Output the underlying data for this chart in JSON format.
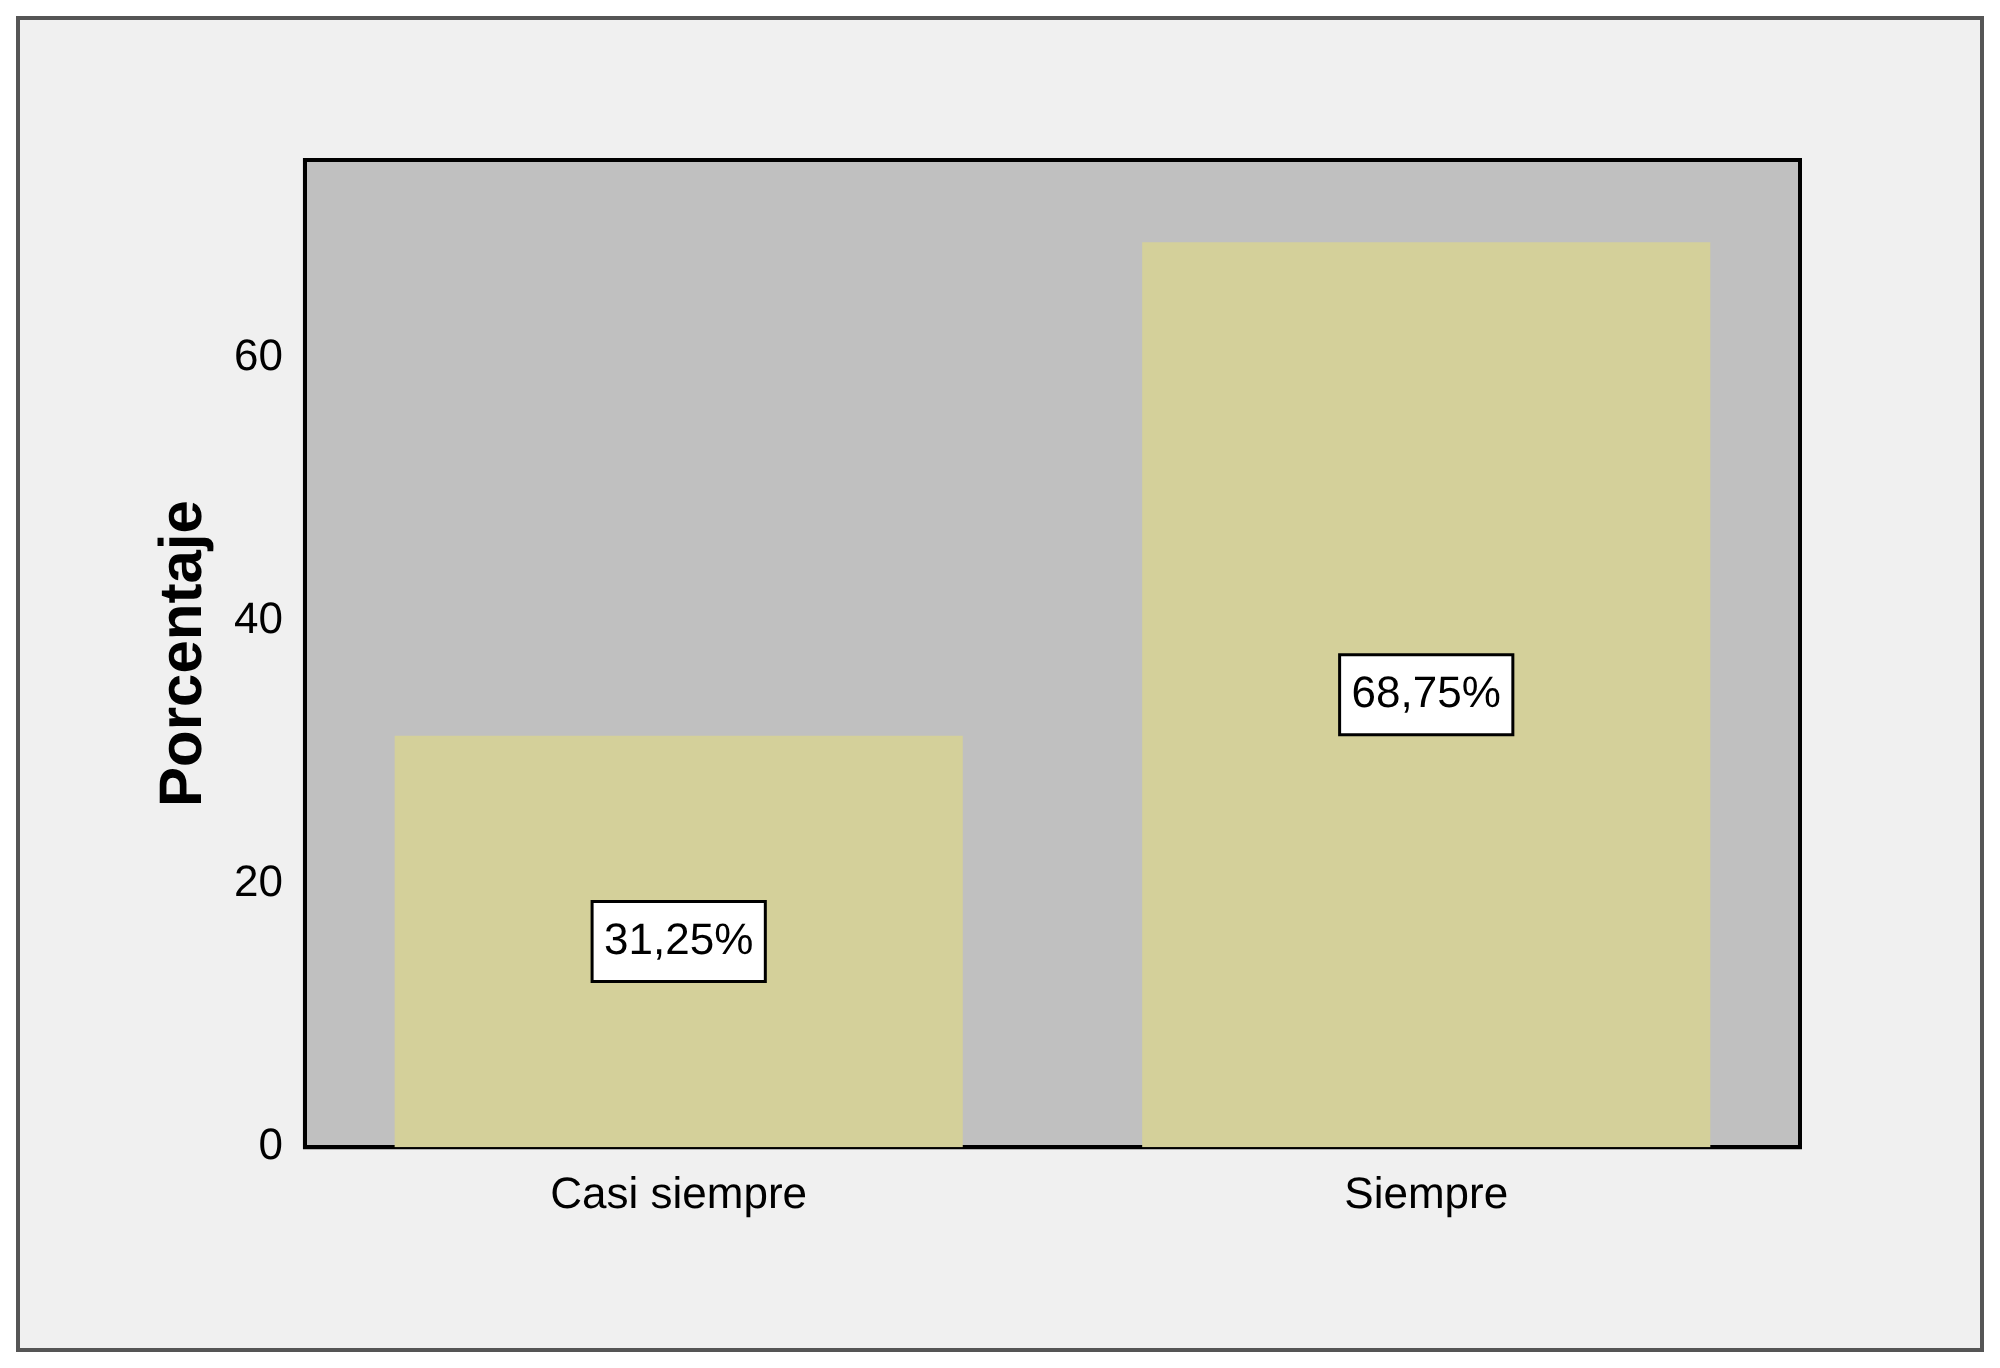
{
  "chart_data": {
    "type": "bar",
    "ylabel": "Porcentaje",
    "categories": [
      "Casi siempre",
      "Siempre"
    ],
    "values": [
      31.25,
      68.75
    ],
    "value_labels": [
      "31,25%",
      "68,75%"
    ],
    "color": "#d4d09a",
    "ylim": [
      0,
      75
    ],
    "yticks": [
      0,
      20,
      40,
      60
    ],
    "grid": false,
    "legend": false
  }
}
